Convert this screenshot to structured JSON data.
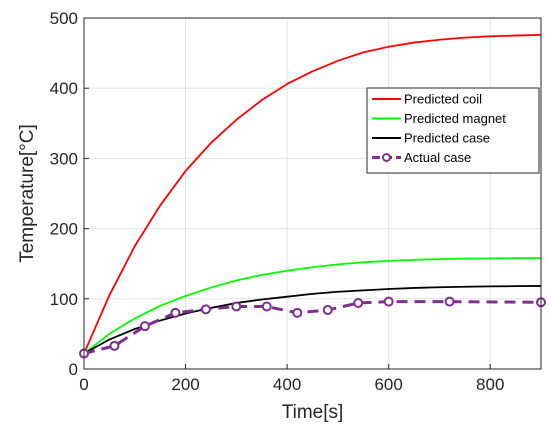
{
  "chart_data": {
    "type": "line",
    "xlabel": "Time[s]",
    "ylabel": "Temperature[°C]",
    "xlim": [
      0,
      900
    ],
    "ylim": [
      0,
      500
    ],
    "xticks": [
      0,
      200,
      400,
      600,
      800
    ],
    "yticks": [
      0,
      100,
      200,
      300,
      400,
      500
    ],
    "grid": true,
    "legend_position": "upper-right",
    "series": [
      {
        "name": "Predicted coil",
        "color": "#ff0000",
        "style": "solid",
        "x": [
          0,
          50,
          100,
          150,
          200,
          250,
          300,
          350,
          400,
          450,
          500,
          550,
          600,
          650,
          700,
          750,
          800,
          850,
          900
        ],
        "y": [
          22,
          105,
          175,
          233,
          282,
          322,
          355,
          383,
          406,
          424,
          439,
          451,
          459,
          465,
          469,
          472,
          474,
          475,
          476
        ]
      },
      {
        "name": "Predicted magnet",
        "color": "#00ff00",
        "style": "solid",
        "x": [
          0,
          50,
          100,
          150,
          200,
          250,
          300,
          350,
          400,
          450,
          500,
          550,
          600,
          650,
          700,
          750,
          800,
          850,
          900
        ],
        "y": [
          22,
          50,
          72,
          90,
          104,
          116,
          126,
          134,
          140,
          145,
          149,
          152,
          154,
          155.5,
          156.5,
          157.2,
          157.6,
          157.8,
          158
        ]
      },
      {
        "name": "Predicted case",
        "color": "#000000",
        "style": "solid",
        "x": [
          0,
          50,
          100,
          150,
          200,
          250,
          300,
          350,
          400,
          450,
          500,
          550,
          600,
          650,
          700,
          750,
          800,
          850,
          900
        ],
        "y": [
          22,
          42,
          57,
          69,
          79,
          87,
          94,
          99,
          103,
          107,
          110,
          112,
          114,
          115.5,
          116.5,
          117.2,
          117.7,
          118,
          118.3
        ]
      },
      {
        "name": "Actual case",
        "color": "#7e2f8e",
        "style": "dashed-markers",
        "x": [
          0,
          60,
          120,
          180,
          240,
          300,
          360,
          420,
          480,
          540,
          600,
          720,
          900
        ],
        "y": [
          22,
          33,
          61,
          80,
          85,
          89,
          89,
          80,
          84,
          94,
          96,
          96,
          95
        ]
      }
    ]
  }
}
